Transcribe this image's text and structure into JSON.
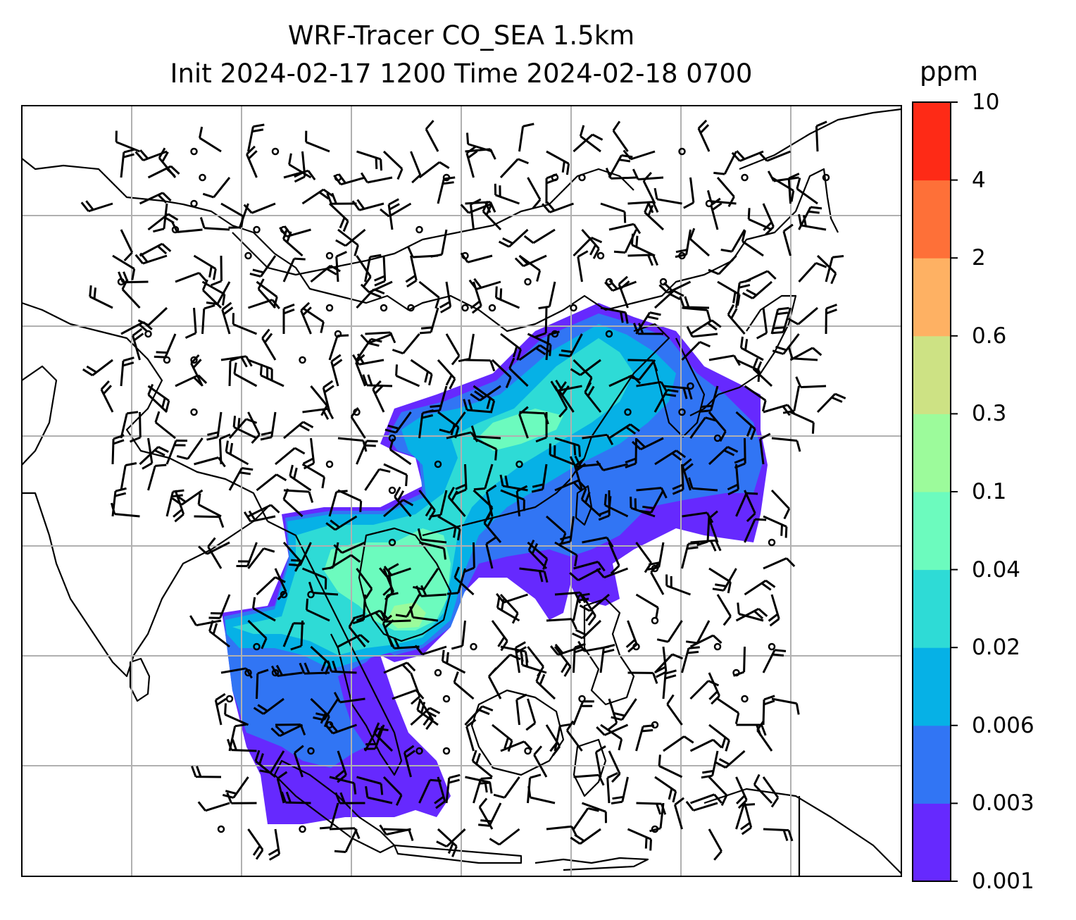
{
  "title": {
    "line1": "WRF-Tracer CO_SEA 1.5km",
    "line2": "Init 2024-02-17 1200 Time 2024-02-18 0700"
  },
  "colorbar": {
    "unit": "ppm",
    "levels": [
      "0.001",
      "0.003",
      "0.006",
      "0.02",
      "0.04",
      "0.1",
      "0.3",
      "0.6",
      "2",
      "4",
      "10"
    ],
    "colors": [
      "#6629fe",
      "#3175f4",
      "#06b1e6",
      "#2edbd6",
      "#6cfbbe",
      "#9cfb9b",
      "#cde284",
      "#feb163",
      "#fe7038",
      "#fe2a16"
    ]
  },
  "map": {
    "frame_color": "#000000",
    "gridline_color": "#b0b0b0",
    "coastline_color": "#000000",
    "wind_barb_color": "#000000"
  },
  "chart_data": {
    "type": "heatmap",
    "title": "WRF-Tracer CO_SEA 1.5km",
    "subtitle": "Init 2024-02-17 1200 Time 2024-02-18 0700",
    "colorbar_label": "ppm",
    "colorbar_ticks": [
      0.001,
      0.003,
      0.006,
      0.02,
      0.04,
      0.1,
      0.3,
      0.6,
      2,
      4,
      10
    ],
    "grid": true
  }
}
